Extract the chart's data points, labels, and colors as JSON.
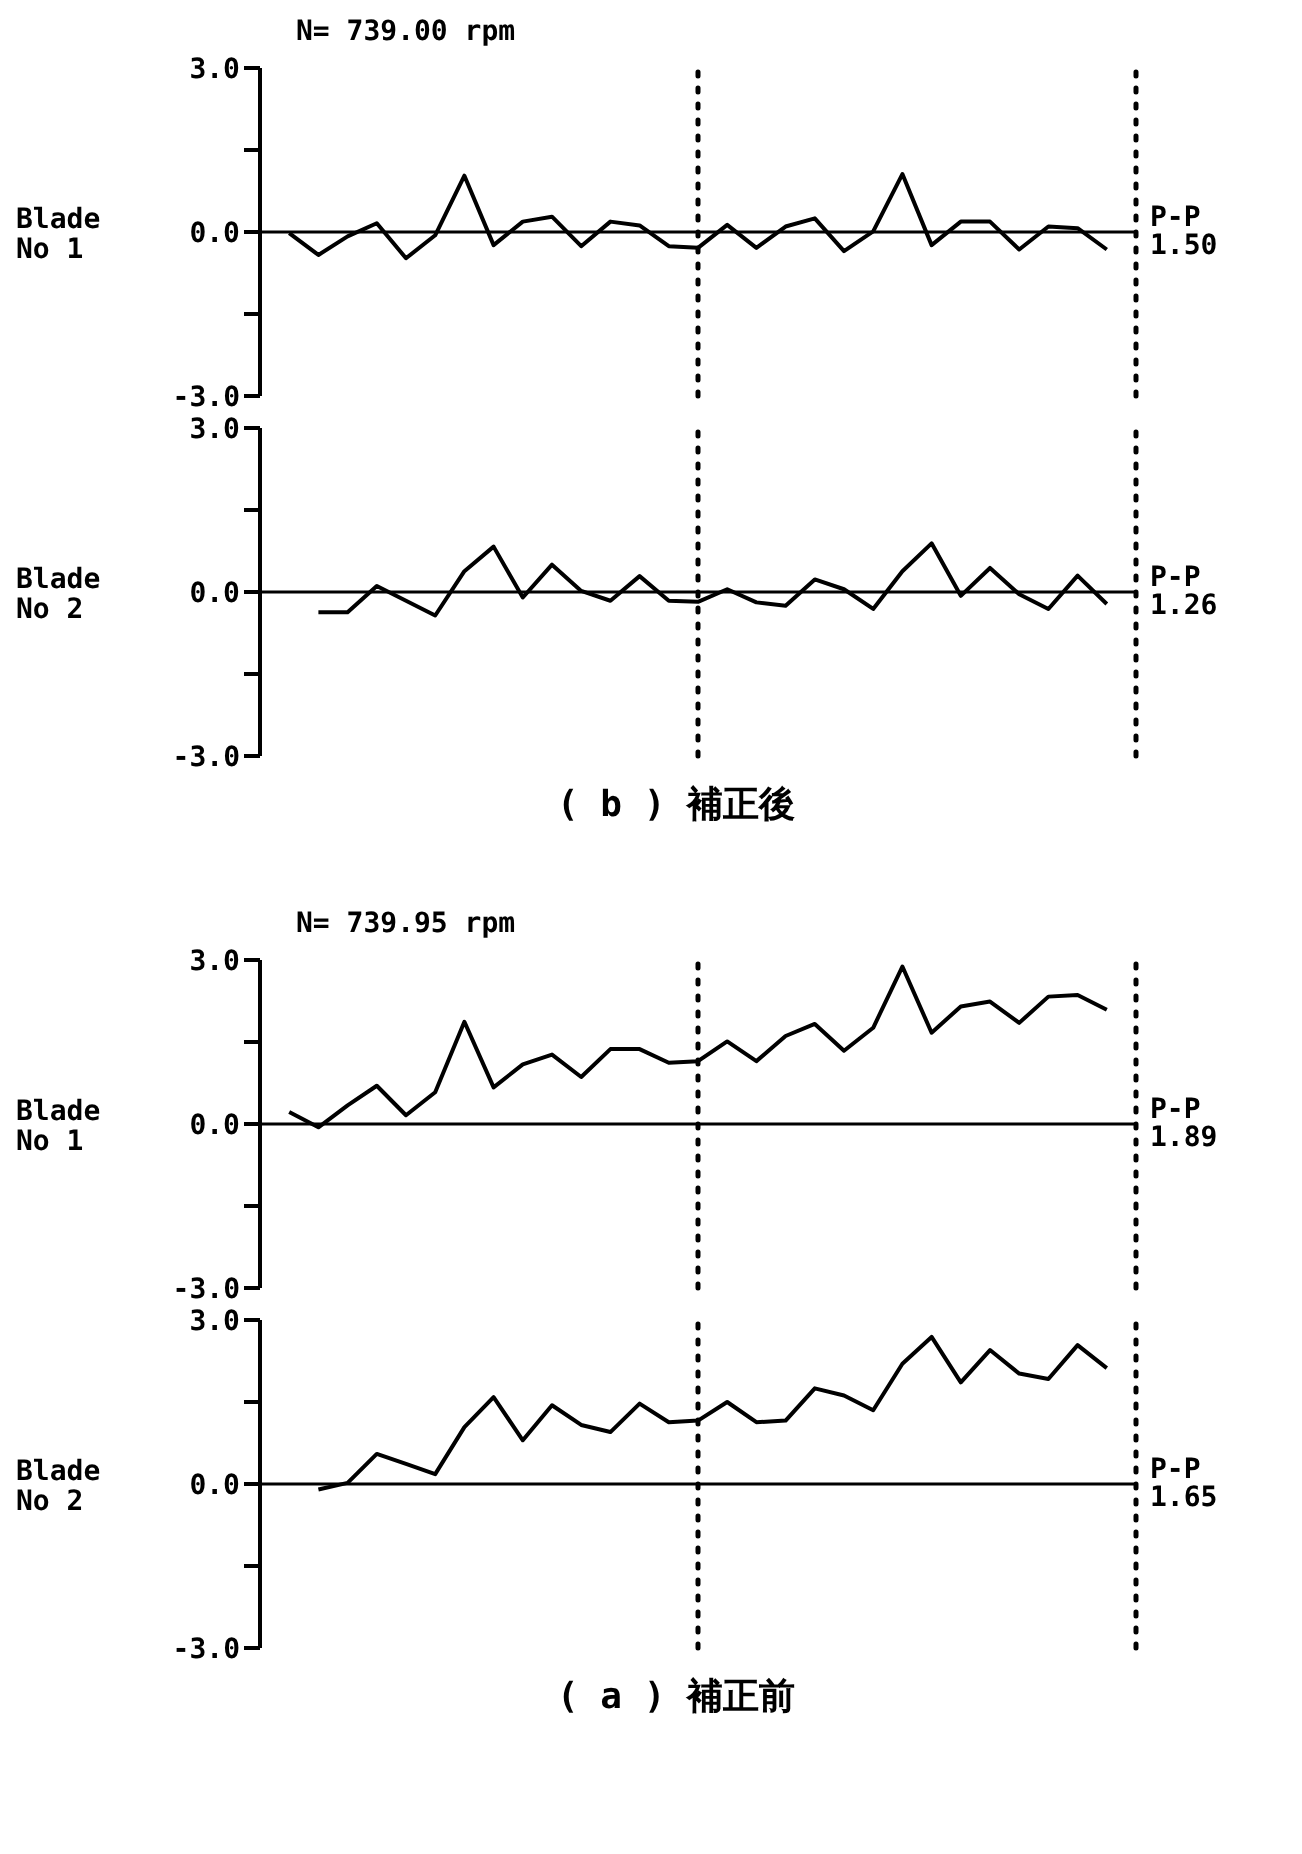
{
  "chart_data": [
    {
      "type": "line",
      "title": "N= 739.00  rpm",
      "ylabel": "Blade No 1",
      "annotations": [
        "P-P",
        "1.50"
      ],
      "categories": [
        null,
        null,
        null,
        null,
        null,
        null,
        null,
        null,
        null,
        null,
        null,
        null,
        null,
        null,
        null,
        null,
        null,
        null,
        null,
        null,
        null,
        null,
        null,
        null,
        null,
        null,
        null,
        null,
        null,
        null,
        null
      ],
      "series": [
        {
          "color": "#000000",
          "values": [
            null,
            -0.02,
            -0.42,
            -0.08,
            0.16,
            -0.48,
            -0.06,
            1.03,
            -0.24,
            0.19,
            0.28,
            -0.26,
            0.19,
            0.12,
            -0.26,
            -0.29,
            0.13,
            -0.29,
            0.1,
            0.25,
            -0.35,
            0.01,
            1.06,
            -0.24,
            0.19,
            0.19,
            -0.32,
            0.1,
            0.07,
            -0.32,
            null
          ]
        }
      ],
      "ylim": [
        -3,
        3
      ],
      "yticks": [
        {
          "value": -3,
          "label": "-3.0"
        },
        {
          "value": -1.5,
          "label": null
        },
        {
          "value": 0,
          "label": "0.0"
        },
        {
          "value": 1.5,
          "label": null
        },
        {
          "value": 3,
          "label": "3.0"
        }
      ],
      "ref_lines": [
        {
          "axis": "y",
          "value": 0,
          "color": "#000000",
          "line_style": "solid"
        }
      ],
      "grid": false,
      "legend": false,
      "marker": "none",
      "line_style": "solid",
      "tick_labels": "y"
    },
    {
      "type": "line",
      "ylabel": "Blade No 2",
      "annotations": [
        "P-P",
        "1.26",
        "( b ) 補正後"
      ],
      "categories": [
        null,
        null,
        null,
        null,
        null,
        null,
        null,
        null,
        null,
        null,
        null,
        null,
        null,
        null,
        null,
        null,
        null,
        null,
        null,
        null,
        null,
        null,
        null,
        null,
        null,
        null,
        null,
        null,
        null,
        null,
        null
      ],
      "series": [
        {
          "color": "#000000",
          "values": [
            null,
            null,
            -0.37,
            -0.37,
            0.11,
            -0.16,
            -0.43,
            0.38,
            0.83,
            -0.1,
            0.5,
            0.02,
            -0.16,
            0.29,
            -0.16,
            -0.18,
            0.05,
            -0.19,
            -0.25,
            0.23,
            0.05,
            -0.31,
            0.38,
            0.89,
            -0.07,
            0.44,
            -0.04,
            -0.31,
            0.3,
            -0.22,
            null
          ]
        }
      ],
      "ylim": [
        -3,
        3
      ],
      "yticks": [
        {
          "value": -3,
          "label": "-3.0"
        },
        {
          "value": -1.5,
          "label": null
        },
        {
          "value": 0,
          "label": "0.0"
        },
        {
          "value": 1.5,
          "label": null
        },
        {
          "value": 3,
          "label": "3.0"
        }
      ],
      "ref_lines": [
        {
          "axis": "y",
          "value": 0,
          "color": "#000000",
          "line_style": "solid"
        }
      ],
      "grid": false,
      "legend": false,
      "marker": "none",
      "line_style": "solid",
      "tick_labels": "y"
    },
    {
      "type": "line",
      "title": "N= 739.95 rpm",
      "ylabel": "Blade No 1",
      "annotations": [
        "P-P",
        "1.89"
      ],
      "categories": [
        null,
        null,
        null,
        null,
        null,
        null,
        null,
        null,
        null,
        null,
        null,
        null,
        null,
        null,
        null,
        null,
        null,
        null,
        null,
        null,
        null,
        null,
        null,
        null,
        null,
        null,
        null,
        null,
        null,
        null,
        null
      ],
      "series": [
        {
          "color": "#000000",
          "values": [
            null,
            0.22,
            -0.06,
            0.34,
            0.7,
            0.16,
            0.58,
            1.87,
            0.67,
            1.09,
            1.27,
            0.86,
            1.37,
            1.37,
            1.12,
            1.15,
            1.51,
            1.15,
            1.61,
            1.83,
            1.34,
            1.76,
            2.88,
            1.67,
            2.15,
            2.24,
            1.85,
            2.33,
            2.36,
            2.09,
            null
          ]
        }
      ],
      "ylim": [
        -3,
        3
      ],
      "yticks": [
        {
          "value": -3,
          "label": "-3.0"
        },
        {
          "value": -1.5,
          "label": null
        },
        {
          "value": 0,
          "label": "0.0"
        },
        {
          "value": 1.5,
          "label": null
        },
        {
          "value": 3,
          "label": "3.0"
        }
      ],
      "ref_lines": [
        {
          "axis": "y",
          "value": 0,
          "color": "#000000",
          "line_style": "solid"
        }
      ],
      "grid": false,
      "legend": false,
      "marker": "none",
      "line_style": "solid",
      "tick_labels": "y"
    },
    {
      "type": "line",
      "ylabel": "Blade No 2",
      "annotations": [
        "P-P",
        "1.65",
        "( a ) 補正前"
      ],
      "categories": [
        null,
        null,
        null,
        null,
        null,
        null,
        null,
        null,
        null,
        null,
        null,
        null,
        null,
        null,
        null,
        null,
        null,
        null,
        null,
        null,
        null,
        null,
        null,
        null,
        null,
        null,
        null,
        null,
        null,
        null,
        null
      ],
      "series": [
        {
          "color": "#000000",
          "values": [
            null,
            null,
            -0.1,
            0.02,
            0.55,
            0.37,
            0.18,
            1.04,
            1.59,
            0.8,
            1.44,
            1.08,
            0.95,
            1.47,
            1.13,
            1.16,
            1.5,
            1.13,
            1.16,
            1.75,
            1.62,
            1.35,
            2.2,
            2.69,
            1.86,
            2.45,
            2.02,
            1.92,
            2.54,
            2.12,
            null
          ]
        }
      ],
      "ylim": [
        -3,
        3
      ],
      "yticks": [
        {
          "value": -3,
          "label": "-3.0"
        },
        {
          "value": -1.5,
          "label": null
        },
        {
          "value": 0,
          "label": "0.0"
        },
        {
          "value": 1.5,
          "label": null
        },
        {
          "value": 3,
          "label": "3.0"
        }
      ],
      "ref_lines": [
        {
          "axis": "y",
          "value": 0,
          "color": "#000000",
          "line_style": "solid"
        }
      ],
      "grid": false,
      "legend": false,
      "marker": "none",
      "line_style": "solid",
      "tick_labels": "y"
    }
  ]
}
